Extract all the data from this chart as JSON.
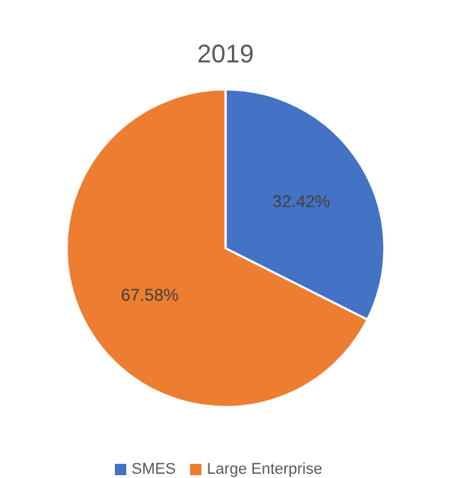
{
  "chart_data": {
    "type": "pie",
    "title": "2019",
    "categories": [
      "SMES",
      "Large Enterprise"
    ],
    "values": [
      32.42,
      67.58
    ],
    "colors": [
      "#4472c4",
      "#ed7d31"
    ],
    "value_labels": [
      "32.42%",
      "67.58%"
    ],
    "legend": "bottom"
  }
}
